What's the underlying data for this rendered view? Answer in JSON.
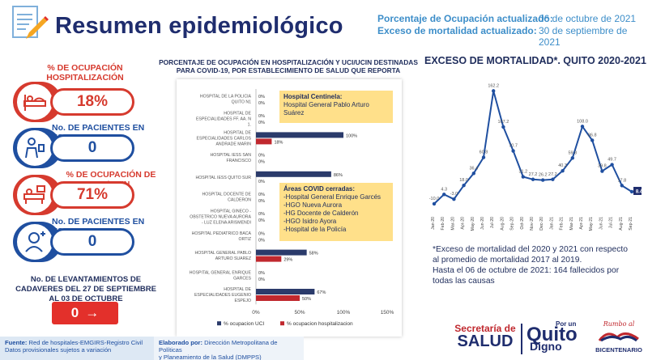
{
  "header": {
    "title": "Resumen epidemiológico",
    "occupancy_update_label": "Porcentaje de Ocupación actualizado:",
    "occupancy_update_value": "06 de octubre de 2021",
    "mortality_update_label": "Exceso de mortalidad actualizado:",
    "mortality_update_value": "30 de septiembre de 2021"
  },
  "kpis": {
    "hosp_occupancy_label": "% DE OCUPACIÓN HOSPITALIZACIÓN",
    "hosp_occupancy_value": "18%",
    "waiting_label": "No. DE PACIENTES EN ESPERA",
    "waiting_value": "0",
    "icu_occupancy_label": "% DE OCUPACIÓN DE UCI/UCIN",
    "icu_occupancy_value": "71%",
    "icu_waiting_label": "No. DE PACIENTES EN ESPERA UCI",
    "icu_waiting_value": "0",
    "cadavers_label": "No. DE LEVANTAMIENTOS DE CADAVERES DEL 27 DE SEPTIEMBRE AL 03 DE OCTUBRE",
    "cadavers_value": "0",
    "cadavers_arrow": "→"
  },
  "colors": {
    "red": "#d63a2e",
    "blue": "#1f4fa0",
    "uci_bar": "#2b3b6b",
    "hosp_bar": "#c0282e",
    "callout": "#ffe08a",
    "line": "#1f4fa0"
  },
  "icons": [
    "document-pencil-icon",
    "hospital-bed-icon",
    "waiting-patients-icon",
    "icu-bed-icon",
    "icu-patient-icon"
  ],
  "hospital_chart_title": "PORCENTAJE DE OCUPACIÓN EN HOSPITALIZACIÓN Y UCI/UCIN DESTINADAS PARA COVID-19, POR ESTABLECIMIENTO DE SALUD QUE REPORTA",
  "callout_centinela": {
    "title": "Hospital Centinela:",
    "text": "Hospital General Pablo Arturo Suárez"
  },
  "callout_closed": {
    "title": "Áreas COVID cerradas:",
    "items": [
      "-Hospital General Enrique Garcés",
      "-HGO Nueva Aurora",
      "-HG Docente de Calderón",
      "-HGO Isidro Ayora",
      "-Hospital de la Policía"
    ]
  },
  "mortality_chart_title": "EXCESO DE MORTALIDAD*. QUITO 2020-2021",
  "mortality_note": {
    "line1": "*Exceso de mortalidad del 2020 y 2021 con respecto al promedio de mortalidad 2017 al 2019.",
    "line2": "Hasta el 06 de octubre de 2021: 164 fallecidos por todas las causas"
  },
  "footer": {
    "source_label": "Fuente:",
    "source_text": "Red de hospitales-EMGIRS-Registro Civil",
    "source_text2": "Datos provisionales sujetos a variación",
    "elab_label": "Elaborado por:",
    "elab_text": "Dirección Metropolitana de Políticas",
    "elab_text2": "y Planeamiento de la Salud (DMPPS)",
    "brand1_top": "Secretaría de",
    "brand1_bottom": "SALUD",
    "brand2_small": "Por un",
    "brand2_big": "Quito",
    "brand2_bottom": "Digno",
    "brand3_script": "Rumbo al",
    "brand3_bottom": "BICENTENARIO"
  },
  "chart_data": [
    {
      "type": "bar",
      "orientation": "horizontal",
      "categories": [
        "HOSPITAL DE LA POLICIA QUITO N1",
        "HOSPITAL DE ESPECIALIDADES FF. AA. N 1.",
        "HOSPITAL DE ESPECIALIDADES CARLOS ANDRADE MARIN",
        "HOSPITAL IESS SAN FRANCISCO",
        "HOSPITAL IESS QUITO SUR",
        "HOSPITAL DOCENTE DE CALDERON",
        "HOSPITAL GINECO - OBSTETRICO NUEVA AURORA - LUZ ELENA ARISMENDI",
        "HOSPITAL PEDIATRICO BACA ORTIZ",
        "HOSPITAL GENERAL PABLO ARTURO SUAREZ",
        "HOSPITAL GENERAL ENRIQUE GARCES",
        "HOSPITAL DE ESPECIALIDADES EUGENIO ESPEJO"
      ],
      "series": [
        {
          "name": "% ocupacion UCI",
          "values": [
            0,
            0,
            100,
            0,
            86,
            0,
            0,
            0,
            58,
            0,
            67
          ]
        },
        {
          "name": "% ocupacion hospitalizacion",
          "values": [
            0,
            0,
            18,
            0,
            0,
            0,
            0,
            0,
            29,
            0,
            50
          ]
        }
      ],
      "value_labels": [
        [
          "0%",
          "0%"
        ],
        [
          "0%",
          "0%"
        ],
        [
          "100%",
          "18%"
        ],
        [
          "0%",
          "0%"
        ],
        [
          "86%",
          "0%"
        ],
        [
          "0%",
          "0%"
        ],
        [
          "0%",
          "0%"
        ],
        [
          "0%",
          "0%"
        ],
        [
          "58%",
          "29%"
        ],
        [
          "0%",
          "0%"
        ],
        [
          "67%",
          "50%"
        ]
      ],
      "xticks": [
        "0%",
        "50%",
        "100%",
        "150%"
      ],
      "xlim": [
        0,
        150
      ],
      "legend": "bottom"
    },
    {
      "type": "line",
      "x": [
        "Jan-20",
        "Feb-20",
        "Mar-20",
        "Apr-20",
        "May-20",
        "Jun-20",
        "Jul-20",
        "Aug-20",
        "Sep-20",
        "Oct-20",
        "Nov-20",
        "Dec-20",
        "Jan-21",
        "Feb-21",
        "Mar-21",
        "Apr-21",
        "May-21",
        "Jun-21",
        "Jul-21",
        "Aug-21",
        "Sep-21"
      ],
      "y": [
        -10.0,
        4.3,
        -3.0,
        18.0,
        36.4,
        60.8,
        162.2,
        107.2,
        70.7,
        31.2,
        27.2,
        26.2,
        27.2,
        40.3,
        59.8,
        108.0,
        86.8,
        39.8,
        49.7,
        17.8,
        8.4
      ],
      "labels": [
        "-10.0",
        "4.3",
        "-3.0",
        "18.0",
        "36.4",
        "60.8",
        "162.2",
        "107.2",
        "70.7",
        "31.2",
        "27.2",
        "26.2",
        "27.2",
        "40.3",
        "59.8",
        "108.0",
        "86.8",
        "39.8",
        "49.7",
        "17.8",
        "8.4"
      ],
      "ylim": [
        -20,
        175
      ],
      "grid": false
    }
  ]
}
